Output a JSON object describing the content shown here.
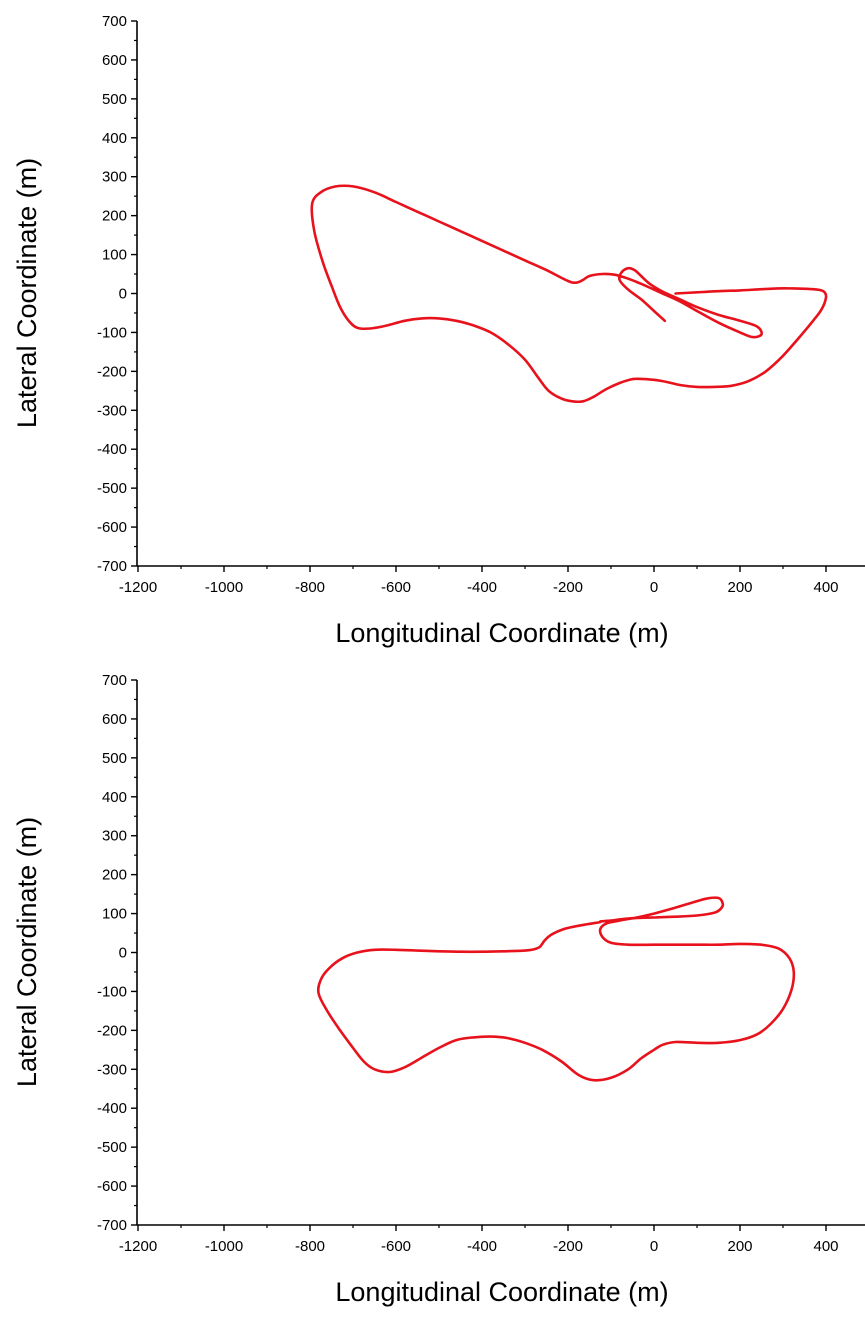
{
  "chart_data": [
    {
      "type": "line",
      "xlabel": "Longitudinal Coordinate (m)",
      "ylabel": "Lateral Coordinate (m)",
      "xlim": [
        -1200,
        480
      ],
      "ylim": [
        -700,
        700
      ],
      "xticks": [
        -1200,
        -1000,
        -800,
        -600,
        -400,
        -200,
        0,
        200,
        400
      ],
      "yticks": [
        700,
        600,
        500,
        400,
        300,
        200,
        100,
        0,
        -100,
        -200,
        -300,
        -400,
        -500,
        -600,
        -700
      ],
      "grid": false,
      "color": "#e8121c",
      "series": [
        {
          "x": [
            25,
            0,
            -30,
            -60,
            -80,
            -75,
            -60,
            -45,
            -30,
            -10,
            20,
            60,
            100,
            150,
            200,
            240,
            250,
            230,
            200,
            150,
            100,
            60,
            20,
            0,
            -30,
            -60,
            -90,
            -120,
            -150,
            -165,
            -180,
            -200,
            -250,
            -300,
            -350,
            -400,
            -450,
            -500,
            -550,
            -600,
            -650,
            -700,
            -740,
            -775,
            -795,
            -790,
            -770,
            -750,
            -730,
            -710,
            -690,
            -660,
            -620,
            -580,
            -540,
            -500,
            -460,
            -420,
            -380,
            -340,
            -300,
            -270,
            -245,
            -215,
            -190,
            -165,
            -140,
            -110,
            -80,
            -50,
            -20,
            20,
            60,
            100,
            140,
            180,
            220,
            260,
            300,
            340,
            370,
            390,
            400,
            395,
            380,
            355,
            325,
            290,
            250,
            200,
            150,
            100,
            50
          ],
          "y": [
            -70,
            -45,
            -15,
            10,
            35,
            55,
            65,
            60,
            45,
            25,
            5,
            -15,
            -35,
            -55,
            -70,
            -85,
            -105,
            -112,
            -100,
            -75,
            -45,
            -20,
            0,
            10,
            25,
            38,
            48,
            50,
            45,
            35,
            28,
            32,
            60,
            85,
            110,
            135,
            160,
            185,
            210,
            235,
            260,
            275,
            275,
            260,
            230,
            160,
            80,
            20,
            -35,
            -70,
            -88,
            -90,
            -82,
            -70,
            -64,
            -64,
            -70,
            -82,
            -100,
            -130,
            -170,
            -215,
            -250,
            -270,
            -277,
            -277,
            -265,
            -245,
            -230,
            -220,
            -220,
            -225,
            -235,
            -240,
            -240,
            -237,
            -225,
            -200,
            -160,
            -110,
            -70,
            -40,
            -10,
            5,
            10,
            12,
            13,
            13,
            11,
            8,
            6,
            3,
            0
          ]
        }
      ]
    },
    {
      "type": "line",
      "xlabel": "Longitudinal Coordinate (m)",
      "ylabel": "Lateral Coordinate (m)",
      "xlim": [
        -1200,
        480
      ],
      "ylim": [
        -700,
        700
      ],
      "xticks": [
        -1200,
        -1000,
        -800,
        -600,
        -400,
        -200,
        0,
        200,
        400
      ],
      "yticks": [
        700,
        600,
        500,
        400,
        300,
        200,
        100,
        0,
        -100,
        -200,
        -300,
        -400,
        -500,
        -600,
        -700
      ],
      "grid": false,
      "color": "#e8121c",
      "series": [
        {
          "x": [
            -125,
            -100,
            -80,
            -50,
            0,
            50,
            100,
            140,
            155,
            160,
            150,
            120,
            80,
            40,
            0,
            -40,
            -80,
            -110,
            -125,
            -120,
            -100,
            -60,
            0,
            50,
            100,
            150,
            200,
            250,
            290,
            315,
            325,
            320,
            300,
            270,
            240,
            200,
            150,
            100,
            50,
            20,
            0,
            -30,
            -60,
            -100,
            -140,
            -175,
            -215,
            -260,
            -300,
            -340,
            -380,
            -420,
            -460,
            -500,
            -540,
            -580,
            -615,
            -650,
            -675,
            -700,
            -730,
            -760,
            -780,
            -775,
            -755,
            -725,
            -690,
            -650,
            -600,
            -550,
            -500,
            -450,
            -400,
            -350,
            -300,
            -280,
            -265,
            -255,
            -240,
            -210,
            -170,
            -125
          ],
          "y": [
            80,
            82,
            85,
            88,
            90,
            92,
            95,
            102,
            112,
            125,
            140,
            138,
            125,
            112,
            100,
            90,
            82,
            75,
            60,
            40,
            25,
            20,
            20,
            20,
            20,
            20,
            22,
            20,
            10,
            -15,
            -50,
            -95,
            -145,
            -185,
            -210,
            -225,
            -232,
            -232,
            -230,
            -237,
            -250,
            -272,
            -300,
            -322,
            -328,
            -315,
            -280,
            -250,
            -232,
            -220,
            -216,
            -218,
            -225,
            -245,
            -270,
            -295,
            -307,
            -300,
            -280,
            -245,
            -200,
            -150,
            -105,
            -70,
            -40,
            -15,
            0,
            7,
            7,
            5,
            3,
            2,
            2,
            3,
            5,
            8,
            15,
            30,
            45,
            60,
            70,
            78
          ]
        }
      ]
    }
  ]
}
